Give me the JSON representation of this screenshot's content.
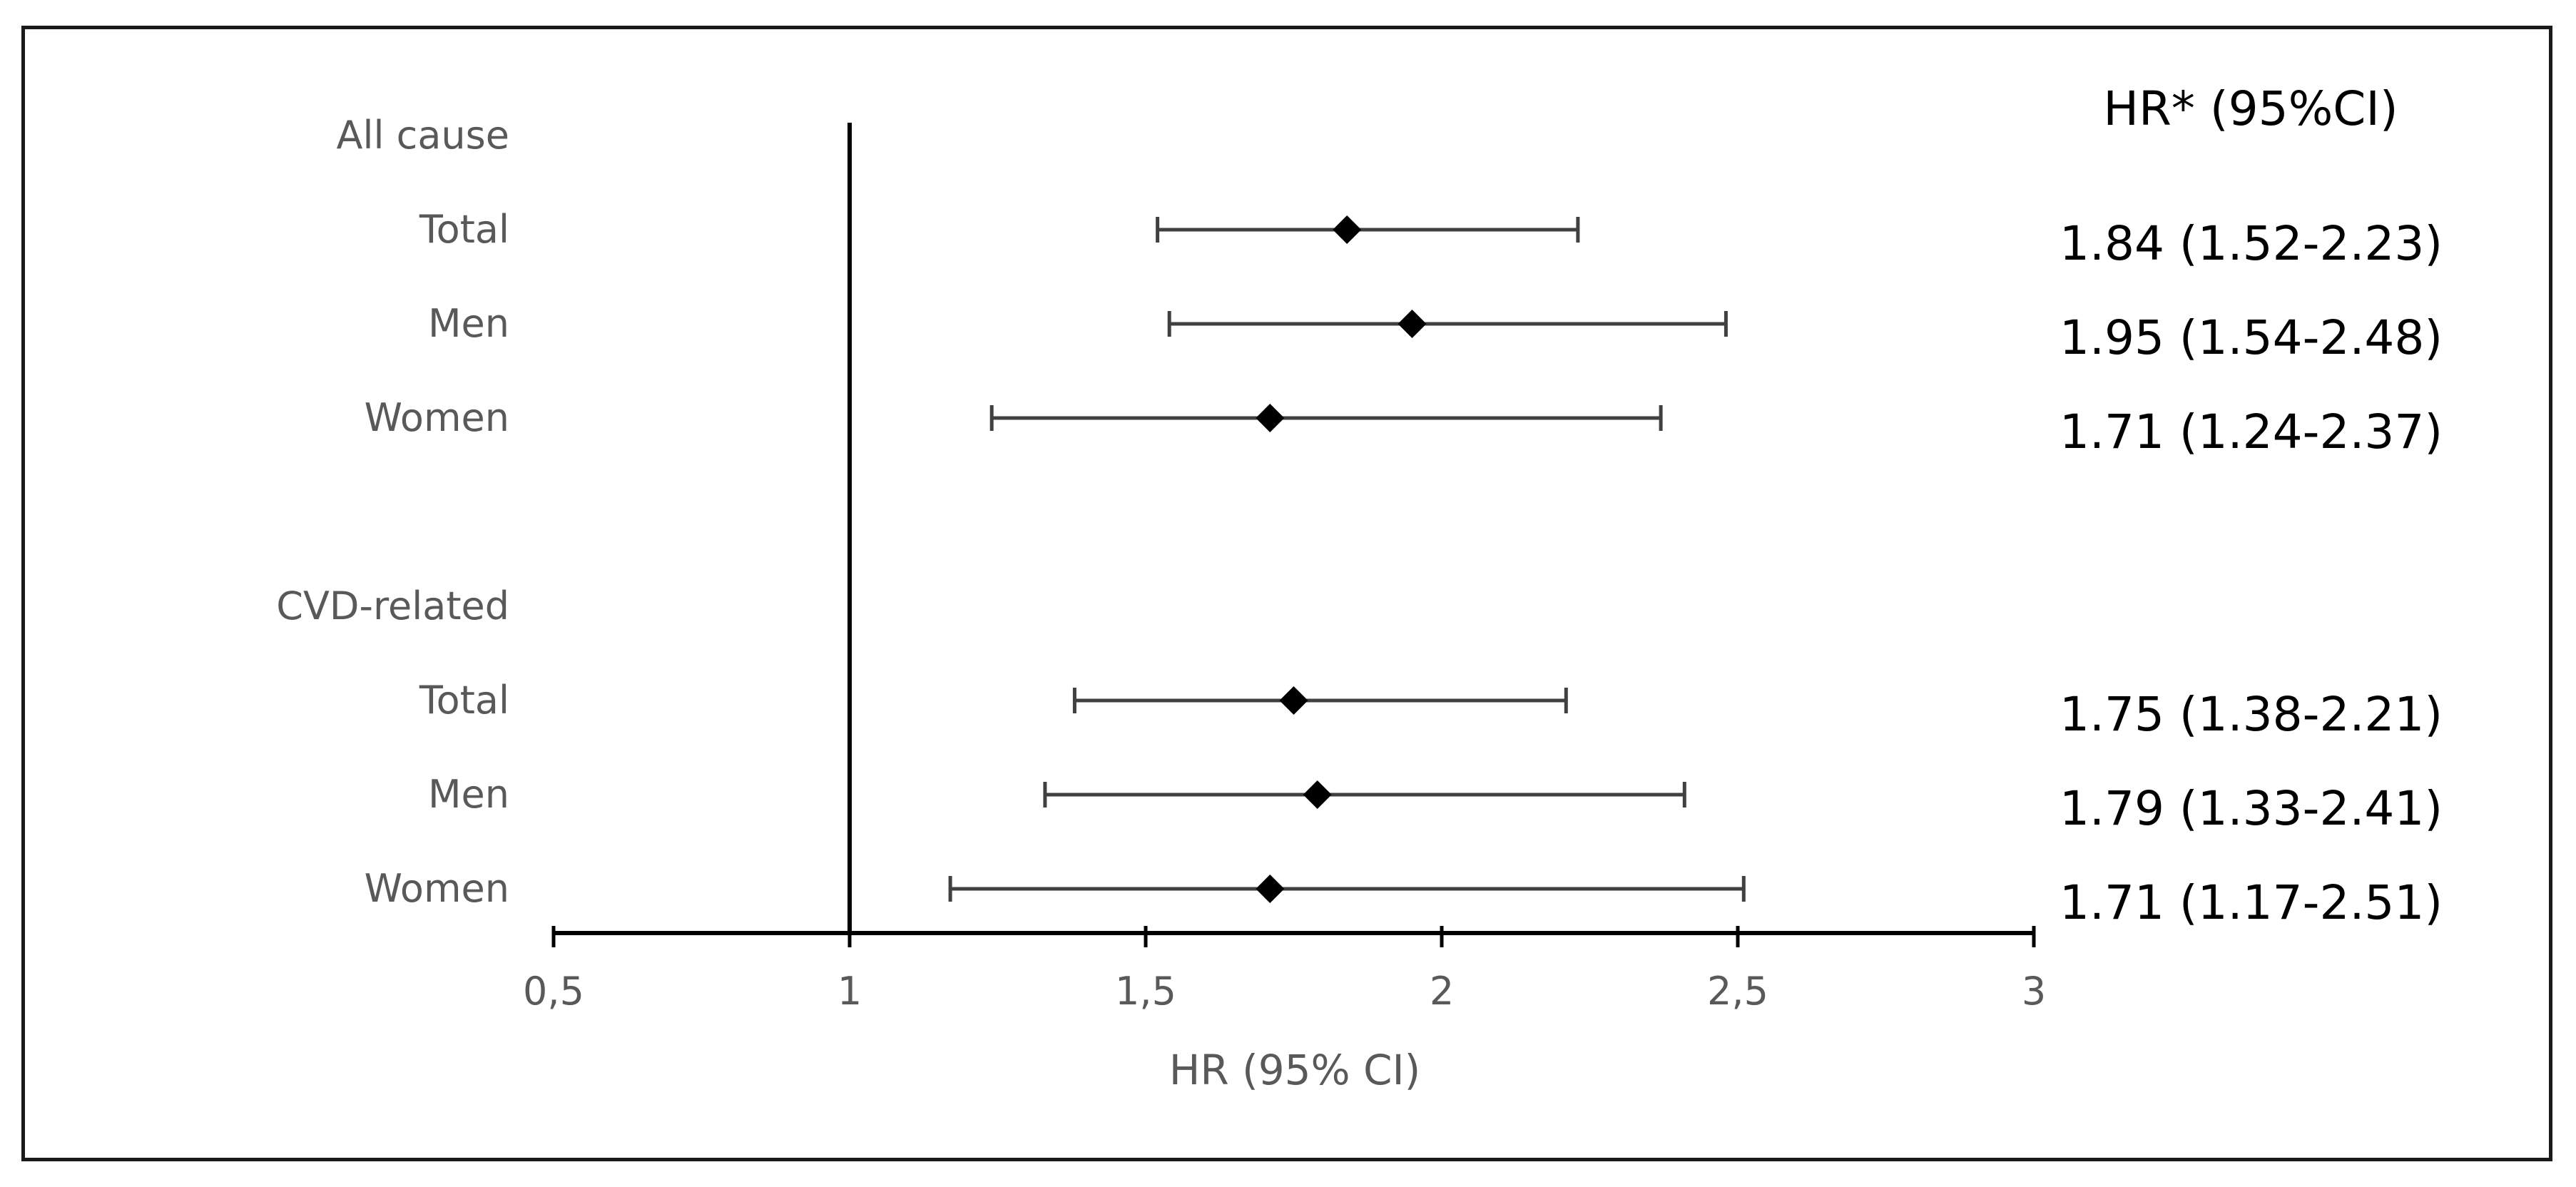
{
  "chart_data": {
    "type": "forest",
    "title": "",
    "xlabel": "HR (95% CI)",
    "ylabel": "",
    "xlim": [
      0.5,
      3
    ],
    "xticks": [
      0.5,
      1,
      1.5,
      2,
      2.5,
      3
    ],
    "xtick_labels": [
      "0,5",
      "1",
      "1,5",
      "2",
      "2,5",
      "3"
    ],
    "reference_line": 1,
    "grid": false,
    "value_column_header": "HR* (95%CI)",
    "rows": [
      {
        "label": "All cause",
        "kind": "heading"
      },
      {
        "label": "Total",
        "kind": "estimate",
        "hr": 1.84,
        "lo": 1.52,
        "hi": 2.23,
        "text": "1.84 (1.52-2.23)"
      },
      {
        "label": "Men",
        "kind": "estimate",
        "hr": 1.95,
        "lo": 1.54,
        "hi": 2.48,
        "text": "1.95 (1.54-2.48)"
      },
      {
        "label": "Women",
        "kind": "estimate",
        "hr": 1.71,
        "lo": 1.24,
        "hi": 2.37,
        "text": "1.71 (1.24-2.37)"
      },
      {
        "label": "",
        "kind": "spacer"
      },
      {
        "label": "CVD-related",
        "kind": "heading"
      },
      {
        "label": "Total",
        "kind": "estimate",
        "hr": 1.75,
        "lo": 1.38,
        "hi": 2.21,
        "text": "1.75 (1.38-2.21)"
      },
      {
        "label": "Men",
        "kind": "estimate",
        "hr": 1.79,
        "lo": 1.33,
        "hi": 2.41,
        "text": "1.79 (1.33-2.41)"
      },
      {
        "label": "Women",
        "kind": "estimate",
        "hr": 1.71,
        "lo": 1.17,
        "hi": 2.51,
        "text": "1.71 (1.17-2.51)"
      }
    ],
    "colors": {
      "marker": "#000000",
      "whisker": "#404040",
      "axis": "#000000",
      "label_text": "#595959",
      "value_text": "#000000"
    }
  }
}
